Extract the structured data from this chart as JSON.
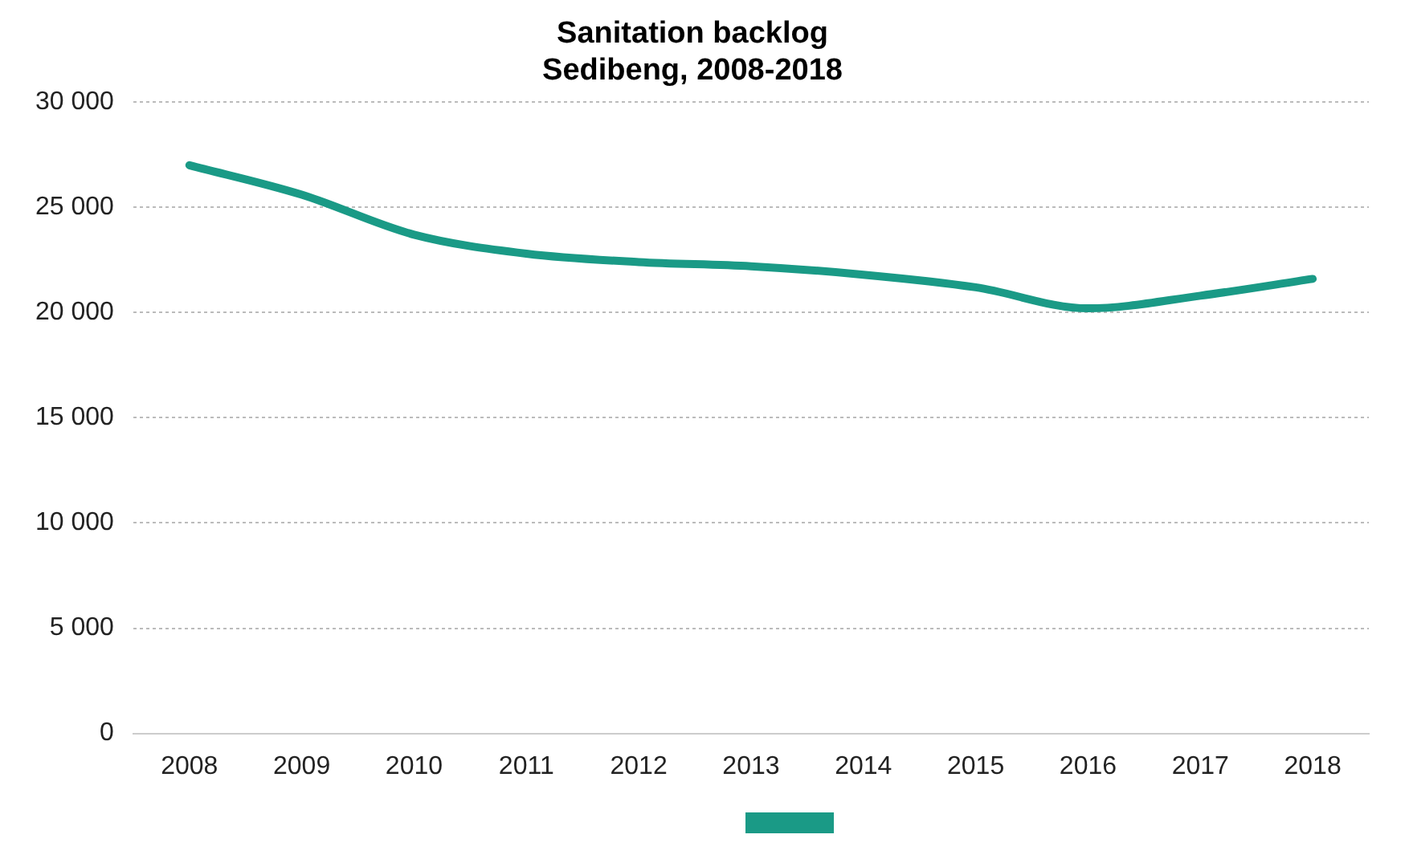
{
  "chart_data": {
    "type": "line",
    "title": [
      "Sanitation backlog",
      "Sedibeng, 2008-2018"
    ],
    "categories": [
      "2008",
      "2009",
      "2010",
      "2011",
      "2012",
      "2013",
      "2014",
      "2015",
      "2016",
      "2017",
      "2018"
    ],
    "series": [
      {
        "color": "#1a9a86",
        "values": [
          27000,
          25600,
          23700,
          22800,
          22400,
          22200,
          21800,
          21200,
          20200,
          20800,
          21600
        ]
      }
    ],
    "ylim": [
      0,
      30000
    ],
    "yticks": [
      0,
      {
        "value": 5000,
        "label": "5 000"
      },
      {
        "value": 10000,
        "label": "10 000"
      },
      {
        "value": 15000,
        "label": "15 000"
      },
      {
        "value": 20000,
        "label": "20 000"
      },
      {
        "value": 25000,
        "label": "25 000"
      },
      {
        "value": 30000,
        "label": "30 000"
      }
    ],
    "grid": "y",
    "marker": "none",
    "line_style": "solid"
  }
}
